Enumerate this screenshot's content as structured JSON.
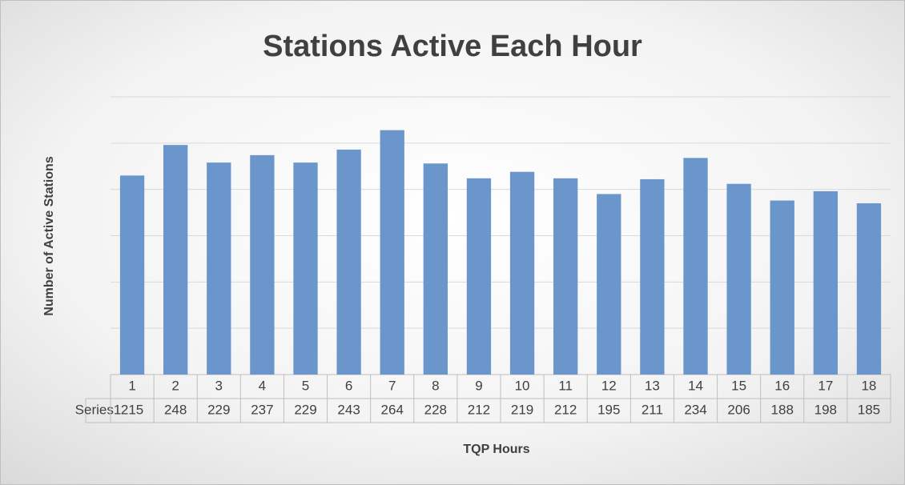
{
  "chart_data": {
    "type": "bar",
    "title": "Stations Active Each Hour",
    "x_label": "TQP Hours",
    "y_label": "Number of Active Stations",
    "categories": [
      "1",
      "2",
      "3",
      "4",
      "5",
      "6",
      "7",
      "8",
      "9",
      "10",
      "11",
      "12",
      "13",
      "14",
      "15",
      "16",
      "17",
      "18"
    ],
    "series": [
      {
        "name": "Series1",
        "color": "#6a96cc",
        "values": [
          215,
          248,
          229,
          237,
          229,
          243,
          264,
          228,
          212,
          219,
          212,
          195,
          211,
          234,
          206,
          188,
          198,
          185
        ]
      }
    ],
    "ylim": [
      0,
      300
    ],
    "yticks": [
      0,
      50,
      100,
      150,
      200,
      250,
      300
    ],
    "grid": true
  }
}
